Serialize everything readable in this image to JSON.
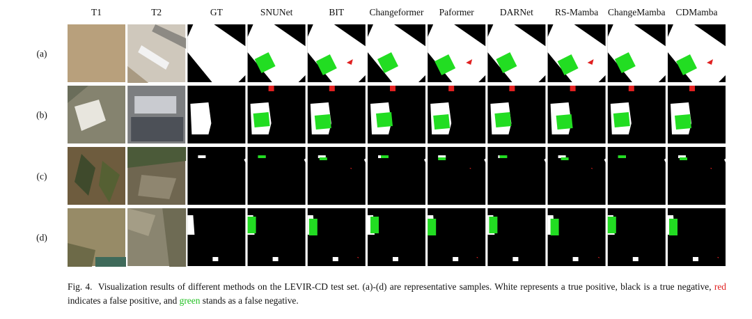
{
  "figure": {
    "columns": [
      "T1",
      "T2",
      "GT",
      "SNUNet",
      "BIT",
      "Changeformer",
      "Paformer",
      "DARNet",
      "RS-Mamba",
      "ChangeMamba",
      "CDMamba"
    ],
    "rows": [
      "(a)",
      "(b)",
      "(c)",
      "(d)"
    ],
    "caption": {
      "label": "Fig. 4.",
      "text1": "Visualization results of different methods on the LEVIR-CD test set. (a)-(d) are representative samples. White represents a true positive, black is a true negative,",
      "red": "red",
      "text2": "indicates a false positive, and",
      "green": "green",
      "text3": "stands as a false negative."
    }
  }
}
